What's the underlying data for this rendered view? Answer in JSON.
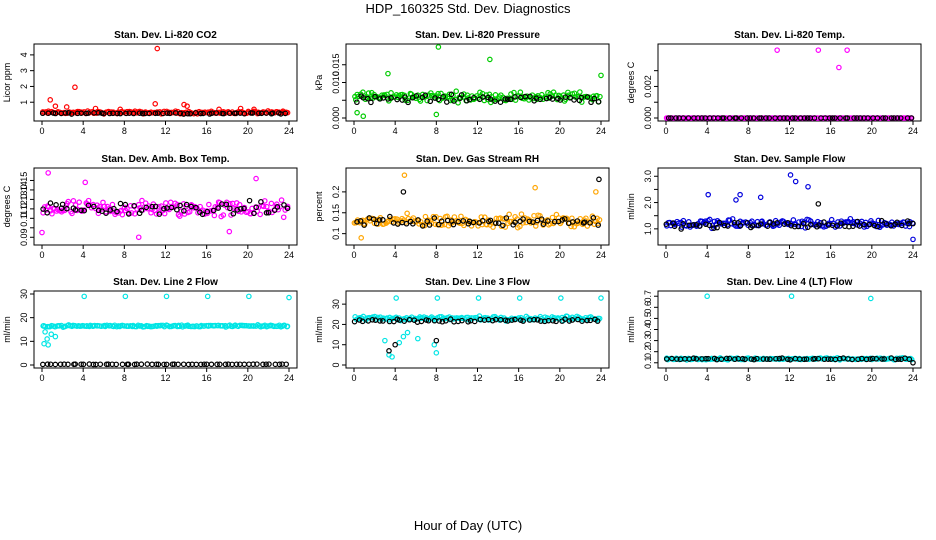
{
  "page": {
    "title": "HDP_160325  Std. Dev. Diagnostics",
    "xlabel": "Hour of Day (UTC)"
  },
  "chart_data": [
    {
      "type": "scatter",
      "title": "Stan. Dev. Li-820 CO2",
      "ylabel": "Licor ppm",
      "xlim": [
        0,
        24
      ],
      "xticks": [
        0,
        4,
        8,
        12,
        16,
        20,
        24
      ],
      "ylim": [
        0,
        4.5
      ],
      "yticks": [
        1,
        2,
        3,
        4
      ],
      "series": [
        {
          "color": "#ff0000",
          "base": 0.35,
          "spread": 0.12,
          "outliers": [
            [
              11.2,
              4.4
            ],
            [
              3.2,
              1.95
            ],
            [
              0.8,
              1.15
            ],
            [
              1.3,
              0.75
            ],
            [
              2.4,
              0.7
            ],
            [
              5.2,
              0.6
            ],
            [
              7.6,
              0.55
            ],
            [
              11.0,
              0.9
            ],
            [
              13.8,
              0.85
            ],
            [
              14.1,
              0.75
            ],
            [
              17.2,
              0.55
            ],
            [
              19.3,
              0.6
            ],
            [
              20.6,
              0.55
            ]
          ]
        },
        {
          "color": "#000000",
          "base": 0.3,
          "spread": 0.06,
          "outliers": []
        }
      ]
    },
    {
      "type": "scatter",
      "title": "Stan. Dev. Li-820 Pressure",
      "ylabel": "kPa",
      "xlim": [
        0,
        24
      ],
      "xticks": [
        0,
        4,
        8,
        12,
        16,
        20,
        24
      ],
      "ylim": [
        0,
        0.02
      ],
      "yticks": [
        0.0,
        0.005,
        0.01,
        0.015
      ],
      "ytick_labels": [
        "0.000",
        "",
        "0.010",
        "0.015"
      ],
      "series": [
        {
          "color": "#00cc00",
          "base": 0.006,
          "spread": 0.002,
          "outliers": [
            [
              8.2,
              0.0205
            ],
            [
              13.2,
              0.0165
            ],
            [
              3.3,
              0.0125
            ],
            [
              24,
              0.012
            ],
            [
              0.3,
              0.0015
            ],
            [
              8.0,
              0.001
            ],
            [
              0.9,
              0.0005
            ]
          ]
        },
        {
          "color": "#000000",
          "base": 0.0055,
          "spread": 0.0015,
          "outliers": []
        }
      ]
    },
    {
      "type": "scatter",
      "title": "Stan. Dev. Li-820 Temp.",
      "ylabel": "degrees C",
      "xlim": [
        0,
        24
      ],
      "xticks": [
        0,
        4,
        8,
        12,
        16,
        20,
        24
      ],
      "ylim": [
        0,
        0.0045
      ],
      "yticks": [
        0.0,
        0.001,
        0.002,
        0.003
      ],
      "ytick_labels": [
        "0.000",
        "",
        "0.002",
        ""
      ],
      "series": [
        {
          "color": "#ff00ff",
          "base": 0.0,
          "spread": 0.0,
          "outliers": [
            [
              10.8,
              0.0043
            ],
            [
              14.8,
              0.0043
            ],
            [
              17.6,
              0.0043
            ],
            [
              16.8,
              0.0032
            ]
          ]
        },
        {
          "color": "#000000",
          "base": 0.0,
          "spread": 0.0,
          "outliers": []
        }
      ]
    },
    {
      "type": "scatter",
      "title": "Stan. Dev. Amb. Box Temp.",
      "ylabel": "degrees C",
      "xlim": [
        0,
        24
      ],
      "xticks": [
        0,
        4,
        8,
        12,
        16,
        20,
        24
      ],
      "ylim": [
        0.085,
        0.16
      ],
      "yticks": [
        0.09,
        0.1,
        0.11,
        0.12,
        0.13,
        0.14,
        0.15
      ],
      "ytick_labels": [
        "0.09",
        "",
        "0.11",
        "0.12",
        "0.13",
        "0.14",
        "0.15"
      ],
      "series": [
        {
          "color": "#ff00ff",
          "base": 0.12,
          "spread": 0.013,
          "outliers": [
            [
              0.6,
              0.158
            ],
            [
              0.0,
              0.095
            ],
            [
              20.8,
              0.152
            ],
            [
              4.2,
              0.148
            ],
            [
              9.4,
              0.09
            ],
            [
              18.2,
              0.096
            ]
          ]
        },
        {
          "color": "#000000",
          "base": 0.12,
          "spread": 0.01,
          "outliers": []
        }
      ]
    },
    {
      "type": "scatter",
      "title": "Stan. Dev. Gas Stream RH",
      "ylabel": "percent",
      "xlim": [
        0,
        24
      ],
      "xticks": [
        0,
        4,
        8,
        12,
        16,
        20,
        24
      ],
      "ylim": [
        0.08,
        0.25
      ],
      "yticks": [
        0.1,
        0.15,
        0.2
      ],
      "series": [
        {
          "color": "#ffa500",
          "base": 0.13,
          "spread": 0.022,
          "outliers": [
            [
              4.9,
              0.24
            ],
            [
              17.6,
              0.21
            ],
            [
              0.7,
              0.09
            ],
            [
              23.5,
              0.2
            ]
          ]
        },
        {
          "color": "#000000",
          "base": 0.13,
          "spread": 0.018,
          "outliers": [
            [
              23.8,
              0.23
            ],
            [
              4.8,
              0.2
            ]
          ]
        }
      ]
    },
    {
      "type": "scatter",
      "title": "Stan. Dev. Sample Flow",
      "ylabel": "ml/min",
      "xlim": [
        0,
        24
      ],
      "xticks": [
        0,
        4,
        8,
        12,
        16,
        20,
        24
      ],
      "ylim": [
        0.5,
        3.2
      ],
      "yticks": [
        1.0,
        1.5,
        2.0,
        2.5,
        3.0
      ],
      "ytick_labels": [
        "1.0",
        "",
        "2.0",
        "",
        "3.0"
      ],
      "series": [
        {
          "color": "#0000dd",
          "base": 1.2,
          "spread": 0.25,
          "outliers": [
            [
              12.1,
              3.05
            ],
            [
              12.6,
              2.8
            ],
            [
              13.8,
              2.6
            ],
            [
              4.1,
              2.3
            ],
            [
              7.2,
              2.3
            ],
            [
              6.8,
              2.1
            ],
            [
              9.2,
              2.2
            ],
            [
              24,
              0.6
            ]
          ]
        },
        {
          "color": "#000000",
          "base": 1.15,
          "spread": 0.2,
          "outliers": [
            [
              14.8,
              1.95
            ],
            [
              24,
              1.2
            ]
          ]
        }
      ]
    },
    {
      "type": "scatter",
      "title": "Stan. Dev. Line 2 Flow",
      "ylabel": "ml/min",
      "xlim": [
        0,
        24
      ],
      "xticks": [
        0,
        4,
        8,
        12,
        16,
        20,
        24
      ],
      "ylim": [
        0,
        30
      ],
      "yticks": [
        0,
        10,
        20,
        30
      ],
      "series": [
        {
          "color": "#00e5e5",
          "base": 16.5,
          "spread": 0.6,
          "outliers": [
            [
              4.1,
              29
            ],
            [
              8.1,
              29
            ],
            [
              12.1,
              29
            ],
            [
              16.1,
              29
            ],
            [
              20.1,
              29
            ],
            [
              24.0,
              28.5
            ],
            [
              0.2,
              9
            ],
            [
              0.5,
              11
            ],
            [
              0.6,
              8.5
            ],
            [
              0.9,
              13
            ],
            [
              1.3,
              12
            ],
            [
              0.3,
              14
            ]
          ]
        },
        {
          "color": "#000000",
          "base": 0.3,
          "spread": 0.1,
          "outliers": []
        }
      ]
    },
    {
      "type": "scatter",
      "title": "Stan. Dev. Line 3 Flow",
      "ylabel": "ml/min",
      "xlim": [
        0,
        24
      ],
      "xticks": [
        0,
        4,
        8,
        12,
        16,
        20,
        24
      ],
      "ylim": [
        0,
        35
      ],
      "yticks": [
        0,
        10,
        20,
        30
      ],
      "series": [
        {
          "color": "#00e5e5",
          "base": 23,
          "spread": 1.5,
          "outliers": [
            [
              4.1,
              33
            ],
            [
              8.1,
              33
            ],
            [
              12.1,
              33
            ],
            [
              16.1,
              33
            ],
            [
              20.1,
              33
            ],
            [
              24.0,
              33
            ],
            [
              3.4,
              5
            ],
            [
              3.7,
              4
            ],
            [
              4.4,
              11
            ],
            [
              7.8,
              10
            ],
            [
              8.0,
              6
            ],
            [
              4.8,
              14
            ],
            [
              5.2,
              16
            ],
            [
              6.2,
              13
            ],
            [
              3.0,
              12
            ]
          ]
        },
        {
          "color": "#000000",
          "base": 22,
          "spread": 1.3,
          "outliers": [
            [
              3.4,
              7
            ],
            [
              4.0,
              10
            ],
            [
              8.0,
              12
            ]
          ]
        }
      ]
    },
    {
      "type": "scatter",
      "title": "Stan. Dev. Line 4 (LT) Flow",
      "ylabel": "ml/min",
      "xlim": [
        0,
        24
      ],
      "xticks": [
        0,
        4,
        8,
        12,
        16,
        20,
        24
      ],
      "ylim": [
        0.08,
        0.72
      ],
      "yticks": [
        0.1,
        0.2,
        0.3,
        0.4,
        0.5,
        0.6,
        0.7
      ],
      "ytick_labels": [
        "0.1",
        "0.2",
        "0.3",
        "0.4",
        "0.5",
        "0.6",
        "0.7"
      ],
      "series": [
        {
          "color": "#00e5e5",
          "base": 0.135,
          "spread": 0.012,
          "outliers": [
            [
              4.0,
              0.7
            ],
            [
              12.2,
              0.7
            ],
            [
              19.9,
              0.68
            ]
          ]
        },
        {
          "color": "#000000",
          "base": 0.135,
          "spread": 0.01,
          "outliers": [
            [
              24,
              0.1
            ]
          ]
        }
      ]
    }
  ]
}
